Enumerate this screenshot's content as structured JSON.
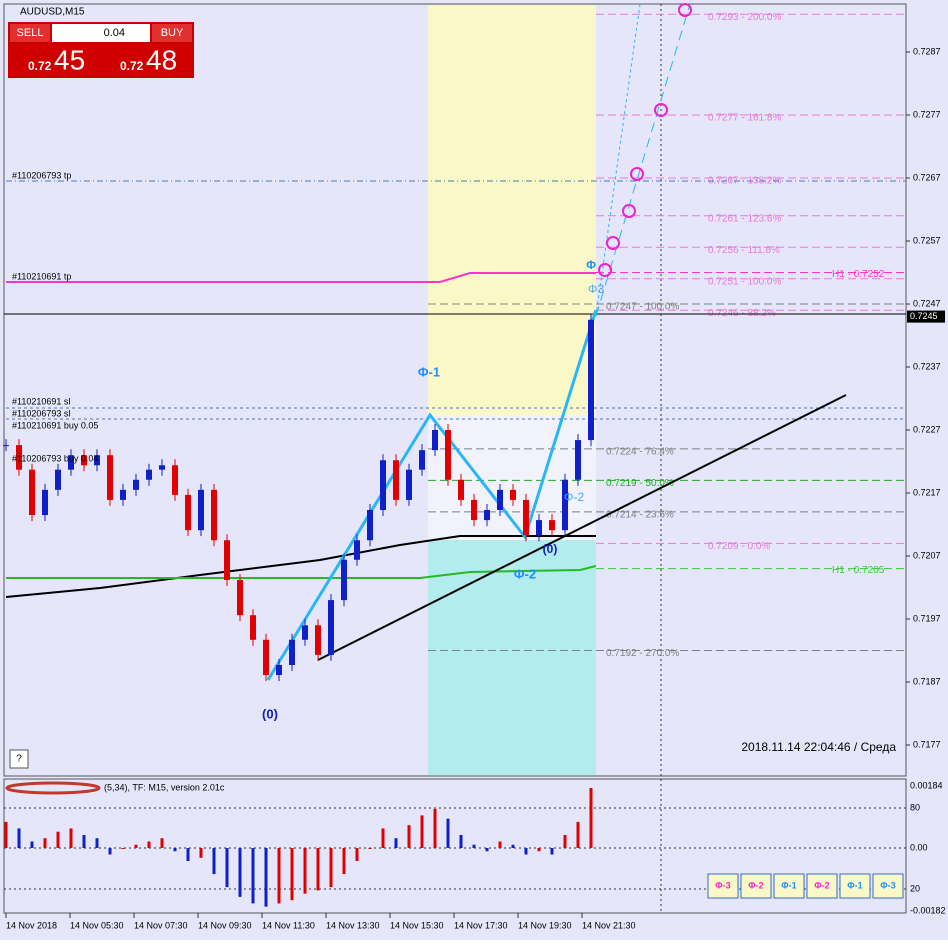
{
  "header": {
    "symbol": "AUDUSD,M15"
  },
  "trade_panel": {
    "sell": "SELL",
    "lot": "0.04",
    "buy": "BUY",
    "bid_prefix": "0.72",
    "bid_big": "45",
    "ask_prefix": "0.72",
    "ask_big": "48"
  },
  "price_axis": {
    "labels": [
      "0.7287",
      "0.7277",
      "0.7267",
      "0.7257",
      "0.7247",
      "0.7237",
      "0.7227",
      "0.7217",
      "0.7207",
      "0.7197",
      "0.7187",
      "0.7177"
    ],
    "current": "0.7245"
  },
  "time_axis": {
    "labels": [
      "14 Nov 2018",
      "14 Nov 05:30",
      "14 Nov 07:30",
      "14 Nov 09:30",
      "14 Nov 11:30",
      "14 Nov 13:30",
      "14 Nov 15:30",
      "14 Nov 17:30",
      "14 Nov 19:30",
      "14 Nov 21:30"
    ]
  },
  "orders": [
    "#110206793 tp",
    "#110210691 tp",
    "#110210691 sl",
    "#110206793 sl",
    "#110210691 buy 0.05",
    "#110206793 buy 0.04"
  ],
  "fib_levels": [
    {
      "label": "0.7293 - 200.0%",
      "color": "#e87ad8"
    },
    {
      "label": "0.7277 - 161.8%",
      "color": "#e87ad8"
    },
    {
      "label": "0.7267 - 138.2%",
      "color": "#e87ad8"
    },
    {
      "label": "0.7261 - 123.6%",
      "color": "#e87ad8"
    },
    {
      "label": "0.7256 - 111.8%",
      "color": "#e87ad8"
    },
    {
      "label": "0.7251 - 100.0%",
      "color": "#e87ad8"
    },
    {
      "label": "0.7246 - 88.2%",
      "color": "#e87ad8"
    },
    {
      "label": "0.7209 - 0.0%",
      "color": "#e87ad8"
    },
    {
      "label": "0.7247 - 100.0%",
      "color": "#808080"
    },
    {
      "label": "0.7224 - 76.4%",
      "color": "#808080"
    },
    {
      "label": "0.7219 - 50.0%",
      "color": "#22aa22"
    },
    {
      "label": "0.7214 - 23.6%",
      "color": "#808080"
    },
    {
      "label": "0.7192 - 270.0%",
      "color": "#808080"
    }
  ],
  "h1_levels": [
    {
      "label": "H1 - 0.7252",
      "color": "#ff33cc"
    },
    {
      "label": "H1 - 0.7205",
      "color": "#33cc33"
    }
  ],
  "wave_labels": [
    "Φ-1",
    "(0)",
    "Φ-2",
    "(0)",
    "Φ-2",
    "Φ3",
    "Φ"
  ],
  "timestamp": "2018.11.14 22:04:46 / Среда",
  "help": "?",
  "candles": {
    "closes": [
      0.72246,
      0.72207,
      0.72135,
      0.72175,
      0.72207,
      0.7223,
      0.72214,
      0.7223,
      0.72159,
      0.72175,
      0.72191,
      0.72207,
      0.72214,
      0.72167,
      0.72111,
      0.72175,
      0.72095,
      0.72032,
      0.71976,
      0.71937,
      0.71881,
      0.71897,
      0.71937,
      0.7196,
      0.71913,
      0.72,
      0.72064,
      0.72095,
      0.72143,
      0.72222,
      0.72159,
      0.72207,
      0.72238,
      0.7227,
      0.72191,
      0.72159,
      0.72127,
      0.72143,
      0.72175,
      0.72159,
      0.72103,
      0.72127,
      0.72111,
      0.72191,
      0.72254,
      0.72445
    ]
  },
  "indicator": {
    "title": "(5,34), TF: M15, version 2.01c",
    "axis": [
      "0.00184",
      "80",
      "0.00",
      "20",
      "-0.00182"
    ],
    "values": [
      0.0008,
      0.0006,
      0.0002,
      0.0003,
      0.0005,
      0.0006,
      0.0004,
      0.0003,
      -0.0002,
      0,
      0.0001,
      0.0002,
      0.0003,
      -0.0001,
      -0.0004,
      -0.0003,
      -0.0008,
      -0.0012,
      -0.0015,
      -0.0017,
      -0.0018,
      -0.0017,
      -0.0016,
      -0.0014,
      -0.0013,
      -0.0012,
      -0.0008,
      -0.0004,
      0,
      0.0006,
      0.0003,
      0.0007,
      0.001,
      0.0012,
      0.0009,
      0.0004,
      0.0001,
      -0.0001,
      0.0002,
      0.0001,
      -0.0002,
      -0.0001,
      -0.0002,
      0.0004,
      0.0008,
      0.00184
    ]
  },
  "buttons": [
    {
      "label": "Φ-3",
      "color": "#ff22cc"
    },
    {
      "label": "Φ-2",
      "color": "#ff22cc"
    },
    {
      "label": "Φ-1",
      "color": "#1e90ff"
    },
    {
      "label": "Φ-2",
      "color": "#ff22cc"
    },
    {
      "label": "Φ-1",
      "color": "#1e90ff"
    },
    {
      "label": "Φ-3",
      "color": "#1e90ff"
    }
  ]
}
